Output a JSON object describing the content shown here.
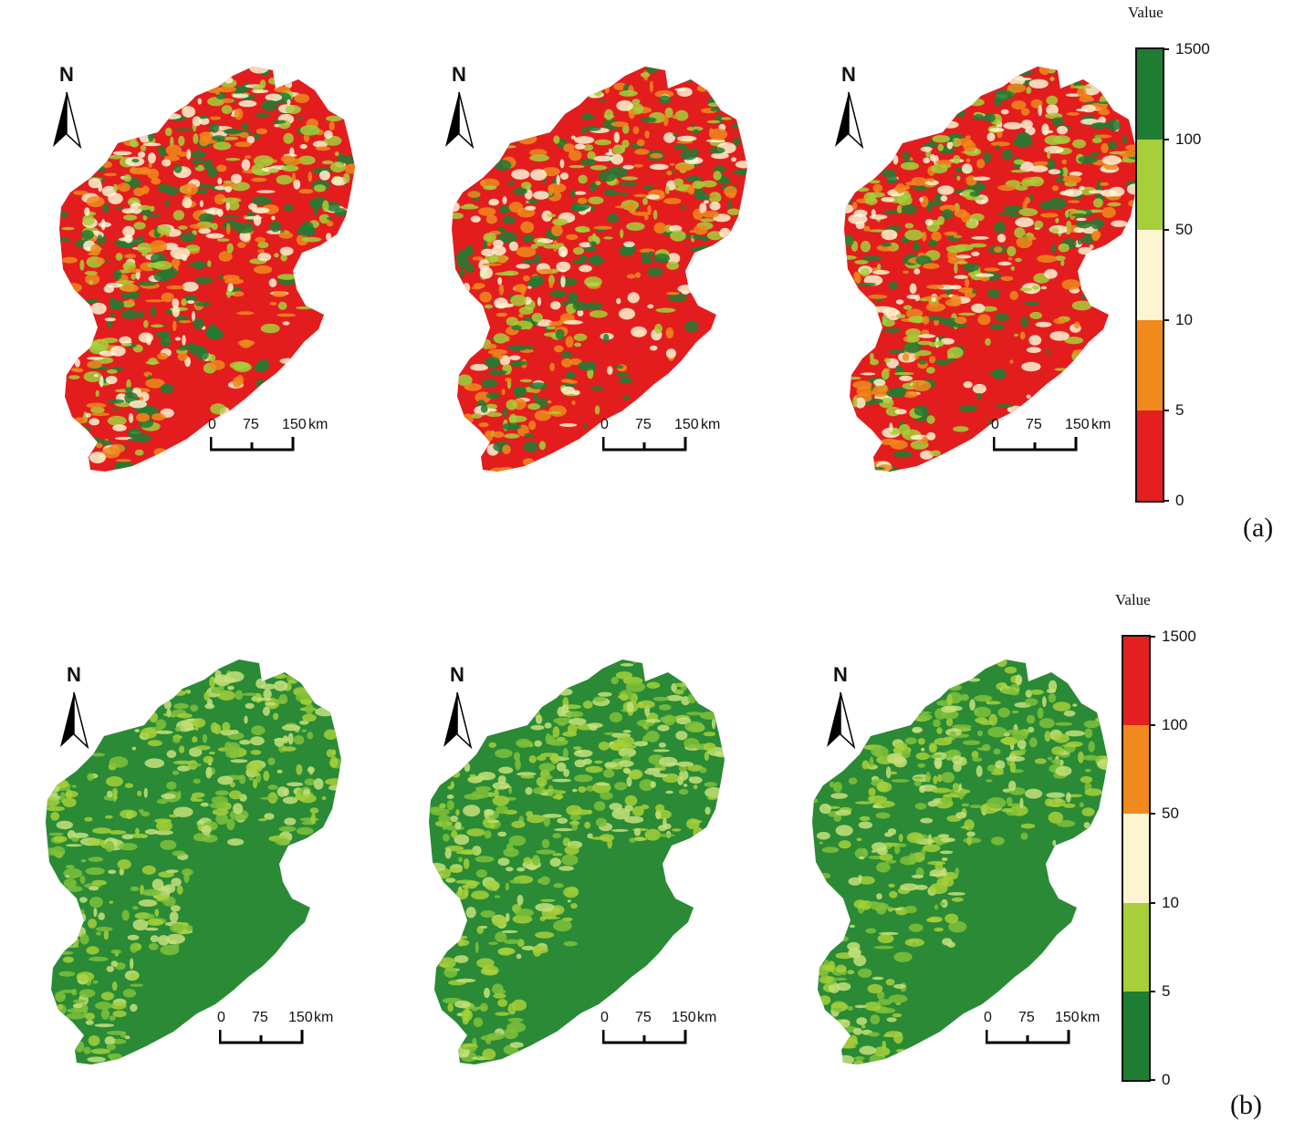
{
  "panels": [
    {
      "label": "(a)",
      "legend": {
        "title": "Value",
        "labels": [
          "1500",
          "100",
          "50",
          "10",
          "5",
          "0"
        ],
        "colors_top_to_bottom": [
          "#1e7d32",
          "#a6cf3a",
          "#fdf5d2",
          "#f08a1c",
          "#e41f1f"
        ]
      },
      "map_palette": {
        "base": "#e31d1d",
        "patches": [
          "#1e7d32",
          "#a6cf3a",
          "#fdf5d2",
          "#f08a1c"
        ]
      }
    },
    {
      "label": "(b)",
      "legend": {
        "title": "Value",
        "labels": [
          "1500",
          "100",
          "50",
          "10",
          "5",
          "0"
        ],
        "colors_top_to_bottom": [
          "#e41f1f",
          "#f08a1c",
          "#fdf5d2",
          "#a6cf3a",
          "#1e7d32"
        ]
      },
      "map_palette": {
        "base": "#2a8a35",
        "patches": [
          "#a6cf3a",
          "#7fbf3a",
          "#c5e07a"
        ]
      }
    }
  ],
  "north_arrow": {
    "letter": "N"
  },
  "scale_bar": {
    "ticks": [
      "0",
      "75",
      "150"
    ],
    "unit": "km"
  }
}
